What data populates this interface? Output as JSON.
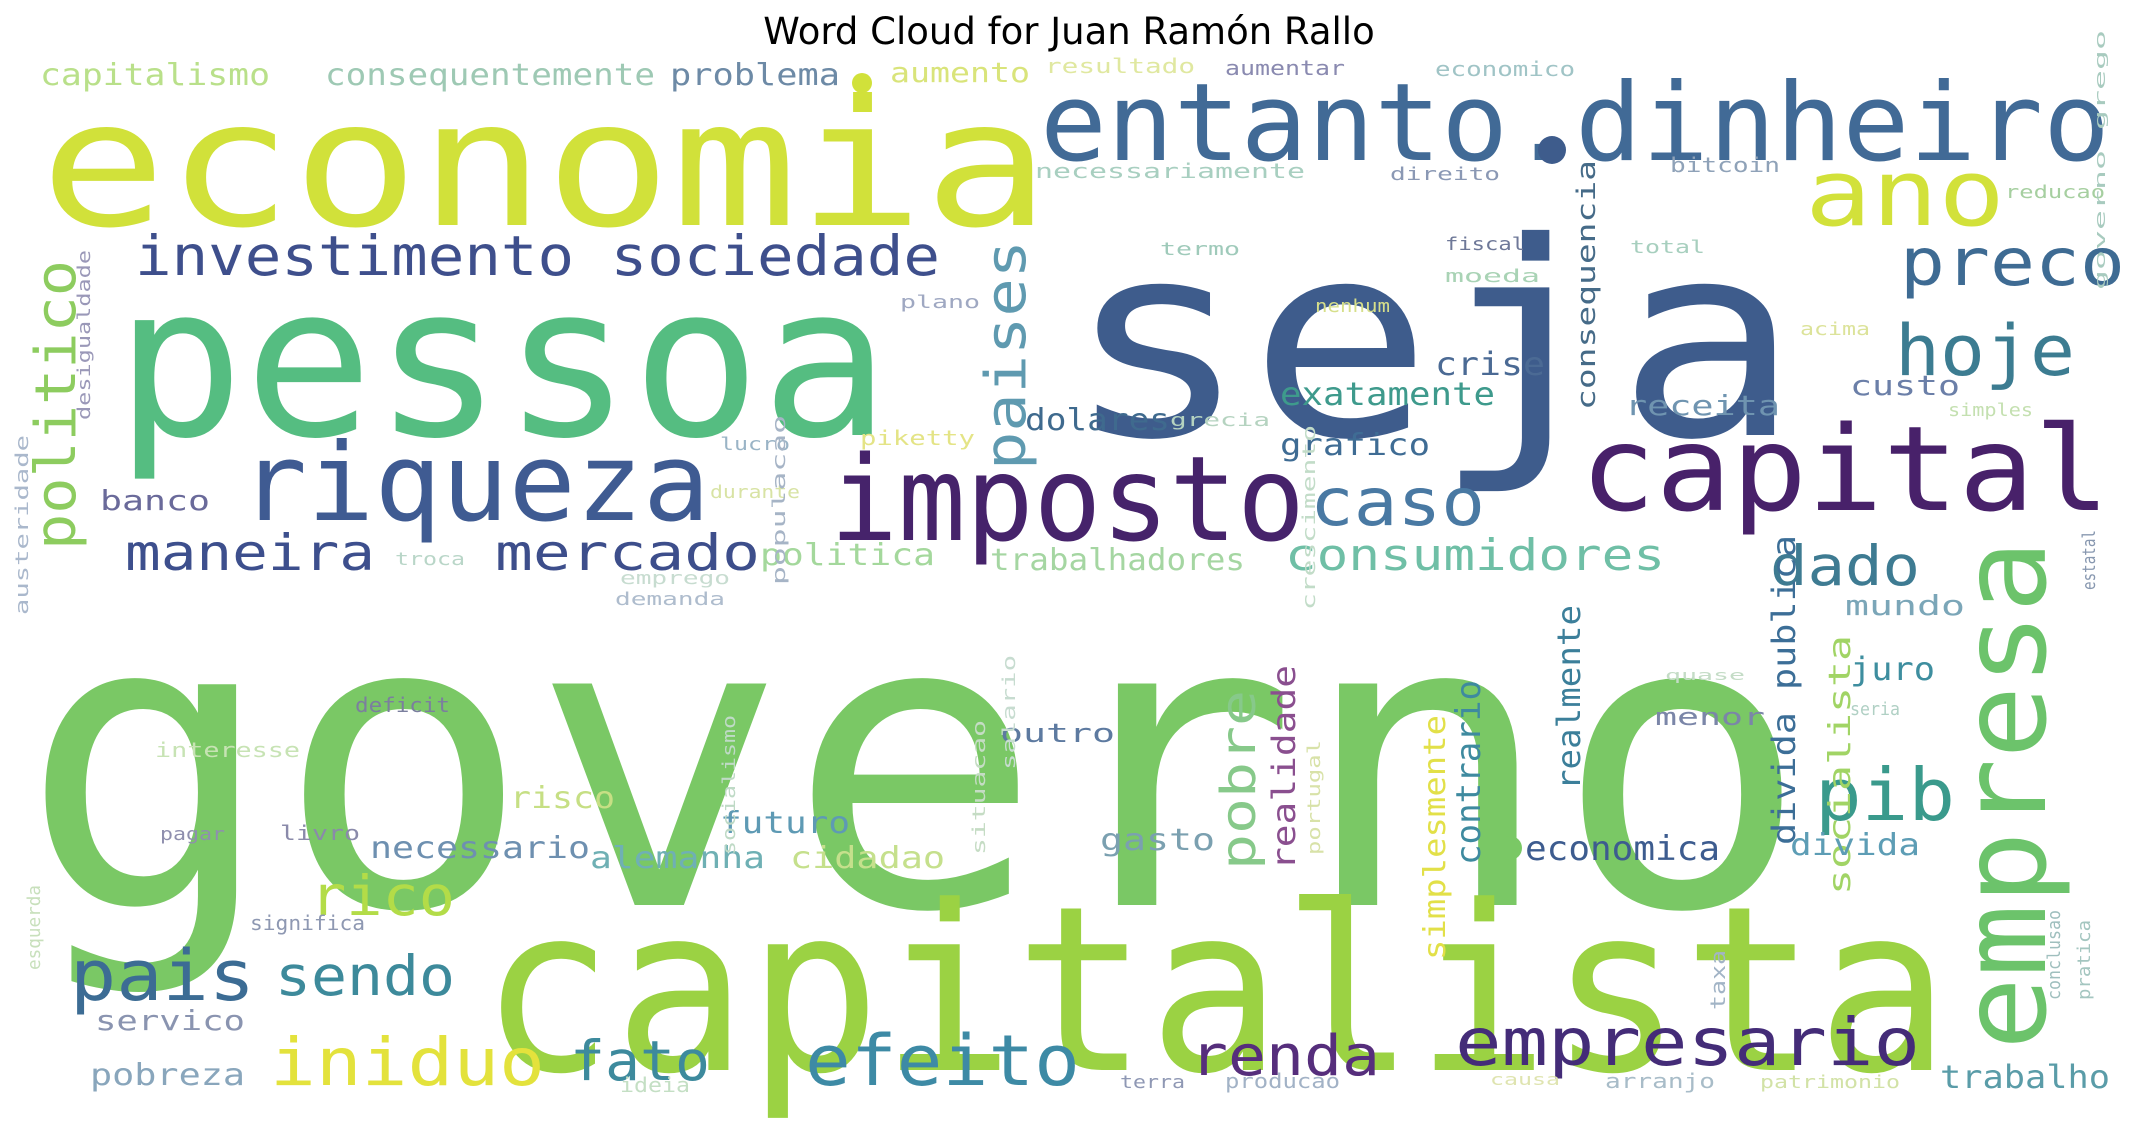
{
  "title": "Word Cloud for Juan Ramón Rallo",
  "colormap": "viridis",
  "words": [
    {
      "text": "governo",
      "color": "#7ac865"
    },
    {
      "text": "seja",
      "color": "#3e5c8c"
    },
    {
      "text": "capitalista",
      "color": "#9bd243"
    },
    {
      "text": "economia",
      "color": "#d1e13a"
    },
    {
      "text": "pessoa",
      "color": "#55bd81"
    },
    {
      "text": "entanto.dinheiro",
      "color": "#416a96"
    },
    {
      "text": "imposto",
      "color": "#46236b"
    },
    {
      "text": "capital",
      "color": "#48216a"
    },
    {
      "text": "empresa",
      "color": "#6cc36b"
    },
    {
      "text": "riqueza",
      "color": "#3f5b92"
    },
    {
      "text": "ano",
      "color": "#d2e13a"
    },
    {
      "text": "investimento sociedade",
      "color": "#3e4f8c"
    },
    {
      "text": "preco",
      "color": "#3e6b93"
    },
    {
      "text": "hoje",
      "color": "#3c7c91"
    },
    {
      "text": "politico",
      "color": "#8dcc5f"
    },
    {
      "text": "paises",
      "color": "#5f9ab0"
    },
    {
      "text": "caso",
      "color": "#4979a3"
    },
    {
      "text": "maneira",
      "color": "#3d4f8d"
    },
    {
      "text": "mercado",
      "color": "#3d4e8b"
    },
    {
      "text": "consumidores",
      "color": "#6fbfa6"
    },
    {
      "text": "dado",
      "color": "#3e7b92"
    },
    {
      "text": "pib",
      "color": "#3a9a8c"
    },
    {
      "text": "efeito",
      "color": "#3d8aa5"
    },
    {
      "text": "empresario",
      "color": "#442c78"
    },
    {
      "text": "renda",
      "color": "#562e7c"
    },
    {
      "text": "fato",
      "color": "#3d8a9d"
    },
    {
      "text": "iniduo",
      "color": "#e3e23c"
    },
    {
      "text": "pais",
      "color": "#3c6c94"
    },
    {
      "text": "sendo",
      "color": "#3d8a9b"
    },
    {
      "text": "rico",
      "color": "#b3dc48"
    },
    {
      "text": "pobre",
      "color": "#87c98a"
    },
    {
      "text": "realidade",
      "color": "#8a4f8f"
    },
    {
      "text": "contrario",
      "color": "#3e8a9f"
    },
    {
      "text": "realmente",
      "color": "#3c7f9a"
    },
    {
      "text": "simplesmente",
      "color": "#e2e048"
    },
    {
      "text": "divida publica",
      "color": "#3c6e97"
    },
    {
      "text": "socialista",
      "color": "#a1d465"
    },
    {
      "text": "consequencia",
      "color": "#466b88"
    },
    {
      "text": "crise",
      "color": "#4b6a94"
    },
    {
      "text": "exatamente",
      "color": "#3e9a8c"
    },
    {
      "text": "dolares",
      "color": "#3f6a8e"
    },
    {
      "text": "grafico",
      "color": "#3f6c94"
    },
    {
      "text": "receita",
      "color": "#6f94b0"
    },
    {
      "text": "custo",
      "color": "#6b7fa8"
    },
    {
      "text": "mundo",
      "color": "#7ba6b8"
    },
    {
      "text": "juro",
      "color": "#3e8e9f"
    },
    {
      "text": "menor",
      "color": "#7b86a8"
    },
    {
      "text": "economica",
      "color": "#3d5c8f"
    },
    {
      "text": "divida",
      "color": "#5d9db5"
    },
    {
      "text": "trabalho",
      "color": "#5a9ca8"
    },
    {
      "text": "trabalhadores",
      "color": "#a5d6a2"
    },
    {
      "text": "politica",
      "color": "#a4d89c"
    },
    {
      "text": "banco",
      "color": "#6a6a9a"
    },
    {
      "text": "capitalismo",
      "color": "#b9e08a"
    },
    {
      "text": "consequentemente",
      "color": "#9ec9b4"
    },
    {
      "text": "problema",
      "color": "#6d8aa6"
    },
    {
      "text": "aumento",
      "color": "#d9e47a"
    },
    {
      "text": "resultado",
      "color": "#e0e8a0"
    },
    {
      "text": "aumentar",
      "color": "#8a8ab0"
    },
    {
      "text": "economico",
      "color": "#a0c4c6"
    },
    {
      "text": "necessariamente",
      "color": "#a8cfc0"
    },
    {
      "text": "direito",
      "color": "#8a98b4"
    },
    {
      "text": "bitcoin",
      "color": "#8fa2b8"
    },
    {
      "text": "reducao",
      "color": "#a6cfa0"
    },
    {
      "text": "termo",
      "color": "#9fcaba"
    },
    {
      "text": "fiscal",
      "color": "#6e7898"
    },
    {
      "text": "total",
      "color": "#a7cfbe"
    },
    {
      "text": "moeda",
      "color": "#a9d3b5"
    },
    {
      "text": "plano",
      "color": "#9fa8c2"
    },
    {
      "text": "nenhum",
      "color": "#d6df8a"
    },
    {
      "text": "acima",
      "color": "#dce39a"
    },
    {
      "text": "desigualdade",
      "color": "#9a98b8"
    },
    {
      "text": "lucro",
      "color": "#9ab4c6"
    },
    {
      "text": "piketty",
      "color": "#e4e486"
    },
    {
      "text": "grecia",
      "color": "#b5d3c0"
    },
    {
      "text": "durante",
      "color": "#d8e3a4"
    },
    {
      "text": "simples",
      "color": "#c4e0b0"
    },
    {
      "text": "governo grego",
      "color": "#a8cbbf"
    },
    {
      "text": "troca",
      "color": "#b9d6c8"
    },
    {
      "text": "emprego",
      "color": "#c7dcd0"
    },
    {
      "text": "demanda",
      "color": "#aebccd"
    },
    {
      "text": "deficit",
      "color": "#7b7f9e"
    },
    {
      "text": "interesse",
      "color": "#c7e3b4"
    },
    {
      "text": "austeridade",
      "color": "#aab8cc"
    },
    {
      "text": "populacao",
      "color": "#a6b4c6"
    },
    {
      "text": "crescimento",
      "color": "#c2dcc8"
    },
    {
      "text": "outro",
      "color": "#5d7aa0"
    },
    {
      "text": "risco",
      "color": "#c6df84"
    },
    {
      "text": "futuro",
      "color": "#5e9ab4"
    },
    {
      "text": "necessario",
      "color": "#6e90b0"
    },
    {
      "text": "alemanha",
      "color": "#6fb0b4"
    },
    {
      "text": "cidadao",
      "color": "#c5e08c"
    },
    {
      "text": "gasto",
      "color": "#7ba0b0"
    },
    {
      "text": "salario",
      "color": "#c7dcd0"
    },
    {
      "text": "situacao",
      "color": "#c5dcc4"
    },
    {
      "text": "socialismo",
      "color": "#bfdac6"
    },
    {
      "text": "livro",
      "color": "#8a8aaa"
    },
    {
      "text": "pagar",
      "color": "#8f8fae"
    },
    {
      "text": "significa",
      "color": "#8e98b2"
    },
    {
      "text": "servico",
      "color": "#8a94b0"
    },
    {
      "text": "pobreza",
      "color": "#89a6bc"
    },
    {
      "text": "esquerda",
      "color": "#c8e0bc"
    },
    {
      "text": "ideia",
      "color": "#c4dfc4"
    },
    {
      "text": "terra",
      "color": "#8f98b4"
    },
    {
      "text": "producao",
      "color": "#a2b2c6"
    },
    {
      "text": "portugal",
      "color": "#d8e2a8"
    },
    {
      "text": "causa",
      "color": "#dfe4b0"
    },
    {
      "text": "arranjo",
      "color": "#a8bcc8"
    },
    {
      "text": "patrimonio",
      "color": "#d2e2a6"
    },
    {
      "text": "taxa",
      "color": "#a2b4c6"
    },
    {
      "text": "conclusao",
      "color": "#9fbfbe"
    },
    {
      "text": "pratica",
      "color": "#a4c6c0"
    },
    {
      "text": "estatal",
      "color": "#8898b0"
    },
    {
      "text": "seria",
      "color": "#b0d0c4"
    },
    {
      "text": "quase",
      "color": "#c4dcc6"
    }
  ]
}
